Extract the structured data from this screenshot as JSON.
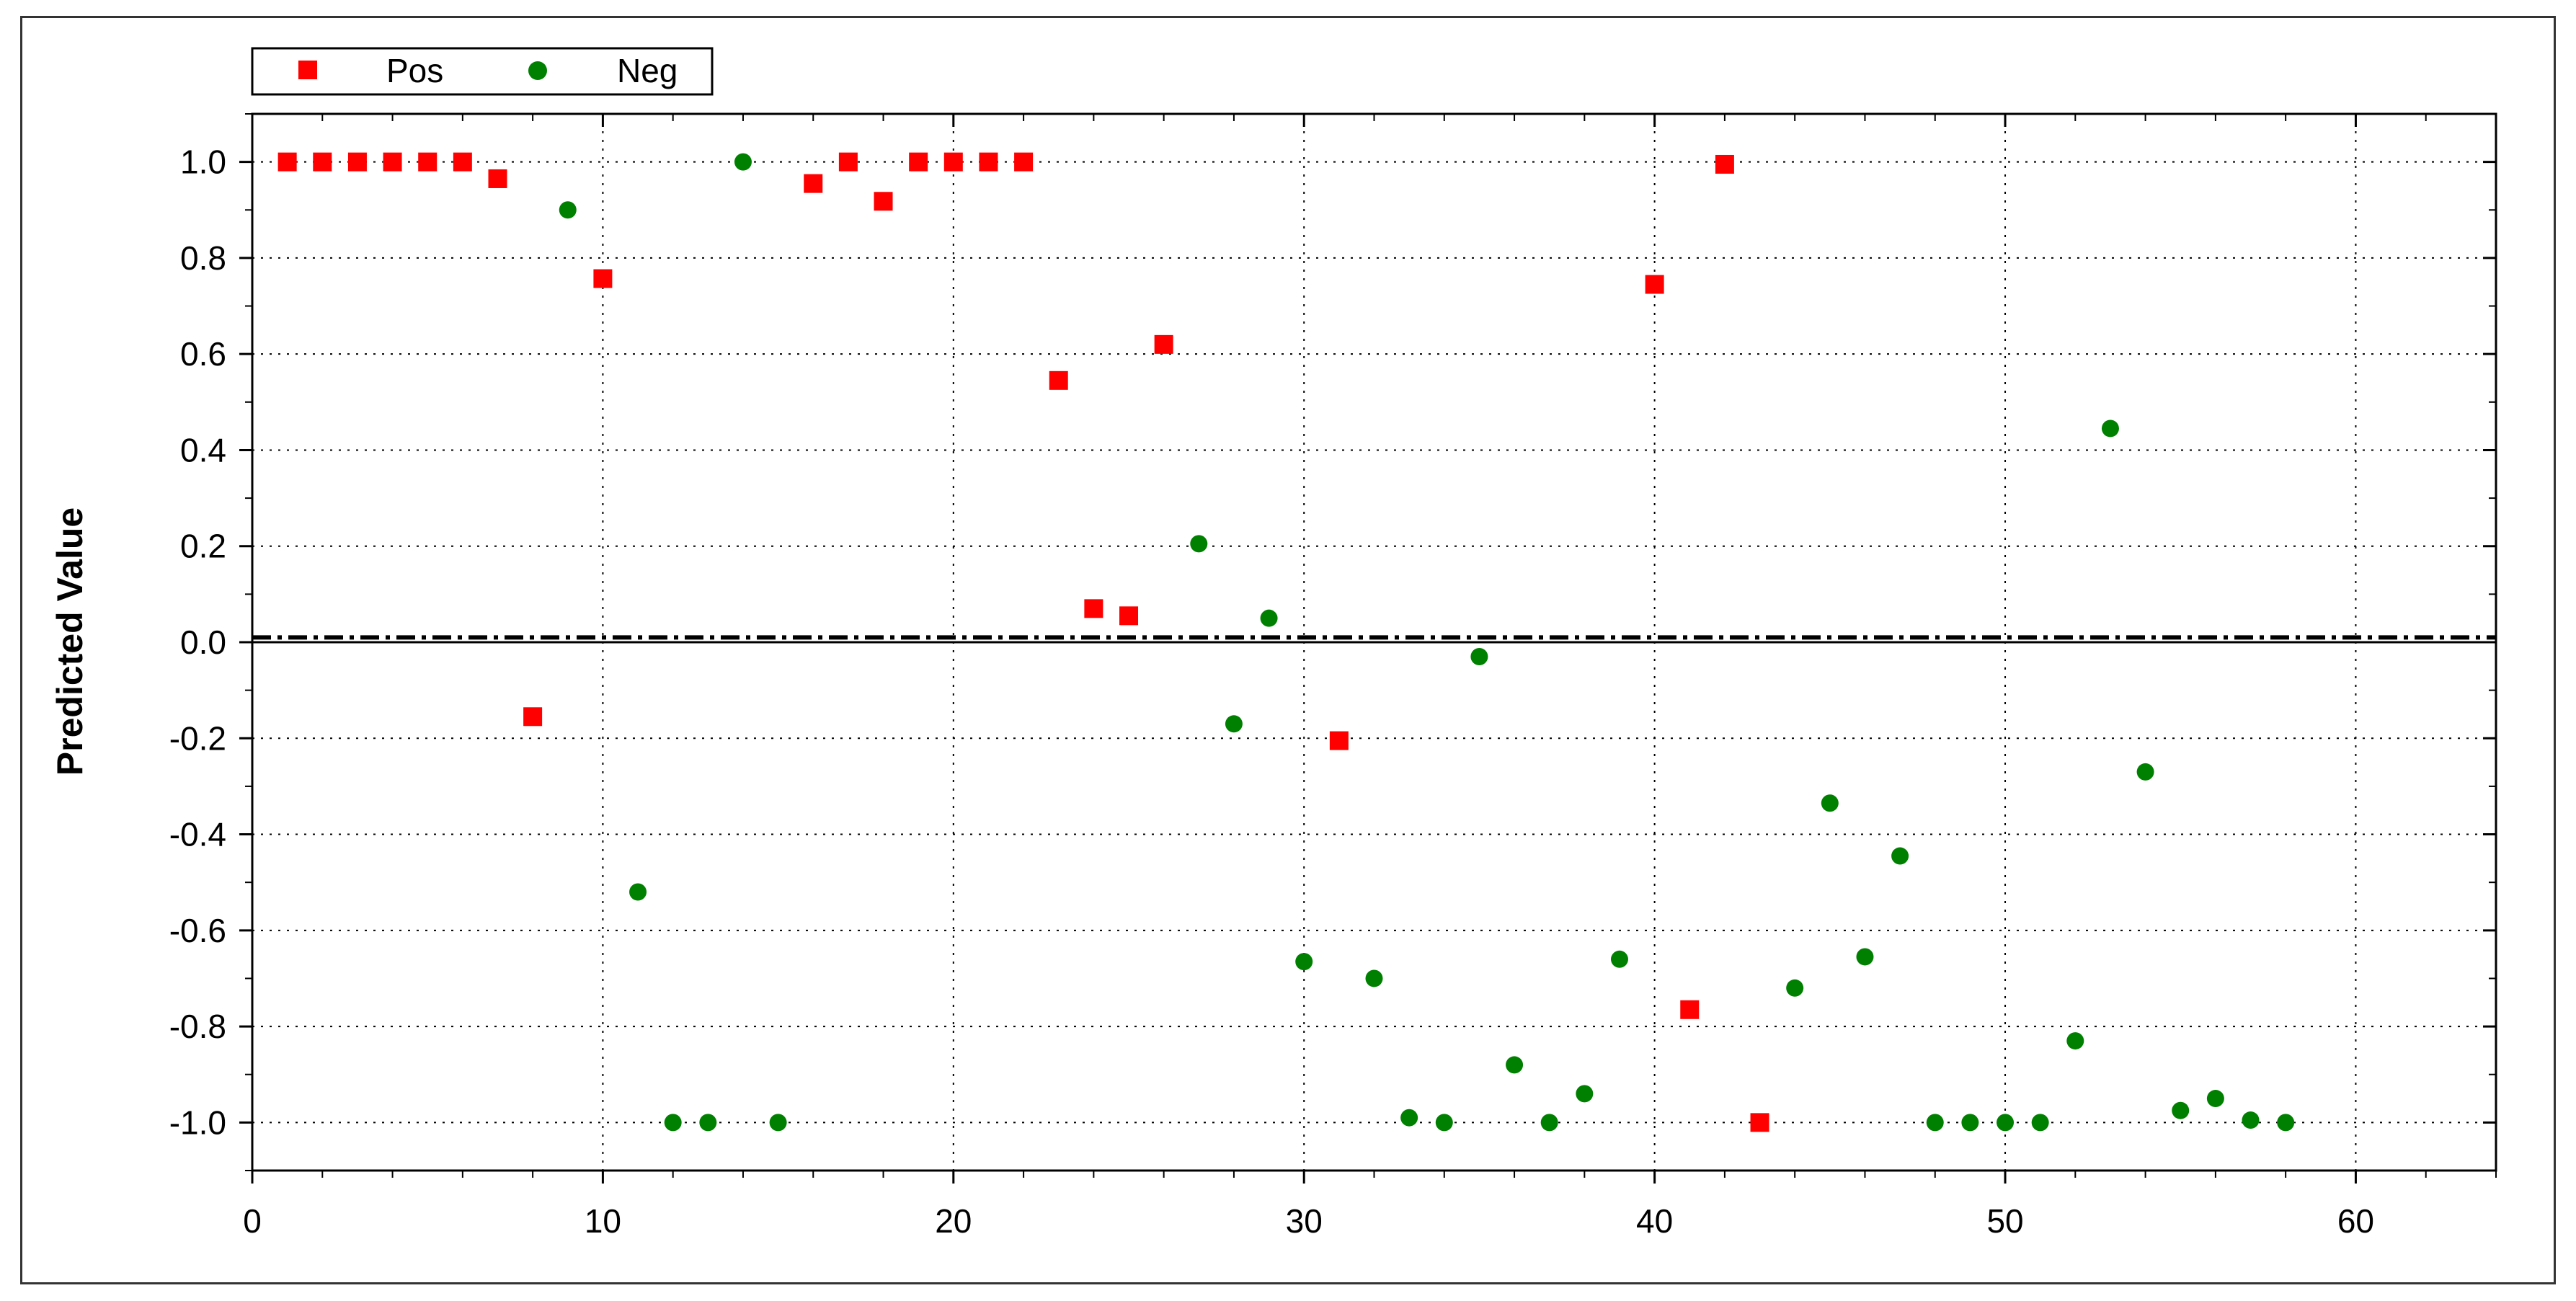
{
  "colors": {
    "pos": "#ff0000",
    "neg": "#008000",
    "grid": "#000000",
    "threshold": "#000000"
  },
  "chart_data": {
    "type": "scatter",
    "title": "",
    "xlabel": "",
    "ylabel": "Predicted Value",
    "xlim": [
      0,
      64
    ],
    "ylim": [
      -1.1,
      1.1
    ],
    "xticks": [
      0,
      10,
      20,
      30,
      40,
      50,
      60
    ],
    "xtick_labels": [
      "0",
      "10",
      "20",
      "30",
      "40",
      "50",
      "60"
    ],
    "yticks": [
      1.0,
      0.8,
      0.6,
      0.4,
      0.2,
      0.0,
      -0.2,
      -0.4,
      -0.6,
      -0.8,
      -1.0
    ],
    "ytick_labels": [
      "1.0",
      "0.8",
      "0.6",
      "0.4",
      "0.2",
      "0.0",
      "-0.2",
      "-0.4",
      "-0.6",
      "-0.8",
      "-1.0"
    ],
    "grid": true,
    "legend_position": "top-left",
    "threshold": 0.01,
    "series": [
      {
        "name": "Pos",
        "marker": "square",
        "points": [
          [
            1,
            1.0
          ],
          [
            2,
            1.0
          ],
          [
            3,
            1.0
          ],
          [
            4,
            1.0
          ],
          [
            5,
            1.0
          ],
          [
            6,
            1.0
          ],
          [
            7,
            0.965
          ],
          [
            8,
            -0.155
          ],
          [
            10,
            0.757
          ],
          [
            16,
            0.955
          ],
          [
            17,
            1.0
          ],
          [
            18,
            0.918
          ],
          [
            19,
            1.0
          ],
          [
            20,
            1.0
          ],
          [
            21,
            1.0
          ],
          [
            22,
            1.0
          ],
          [
            23,
            0.545
          ],
          [
            24,
            0.07
          ],
          [
            25,
            0.055
          ],
          [
            26,
            0.62
          ],
          [
            31,
            -0.205
          ],
          [
            40,
            0.745
          ],
          [
            41,
            -0.765
          ],
          [
            42,
            0.995
          ],
          [
            43,
            -1.0
          ]
        ]
      },
      {
        "name": "Neg",
        "marker": "circle",
        "points": [
          [
            9,
            0.9
          ],
          [
            11,
            -0.52
          ],
          [
            12,
            -1.0
          ],
          [
            13,
            -1.0
          ],
          [
            14,
            1.0
          ],
          [
            15,
            -1.0
          ],
          [
            27,
            0.205
          ],
          [
            28,
            -0.17
          ],
          [
            29,
            0.05
          ],
          [
            30,
            -0.665
          ],
          [
            32,
            -0.7
          ],
          [
            33,
            -0.99
          ],
          [
            34,
            -1.0
          ],
          [
            35,
            -0.03
          ],
          [
            36,
            -0.88
          ],
          [
            37,
            -1.0
          ],
          [
            38,
            -0.94
          ],
          [
            39,
            -0.66
          ],
          [
            44,
            -0.72
          ],
          [
            45,
            -0.335
          ],
          [
            46,
            -0.655
          ],
          [
            47,
            -0.445
          ],
          [
            48,
            -1.0
          ],
          [
            49,
            -1.0
          ],
          [
            50,
            -1.0
          ],
          [
            51,
            -1.0
          ],
          [
            52,
            -0.83
          ],
          [
            53,
            0.445
          ],
          [
            54,
            -0.27
          ],
          [
            55,
            -0.975
          ],
          [
            56,
            -0.95
          ],
          [
            57,
            -0.995
          ],
          [
            58,
            -1.0
          ]
        ]
      }
    ]
  }
}
